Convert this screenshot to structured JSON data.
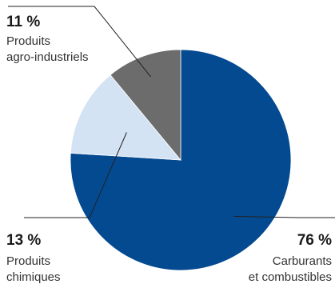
{
  "chart_data": {
    "type": "pie",
    "slices": [
      {
        "key": "carburants",
        "value": 76,
        "pct_label": "76 %",
        "label_lines": [
          "Carburants",
          "et combustibles"
        ],
        "color": "#034a91"
      },
      {
        "key": "chimiques",
        "value": 13,
        "pct_label": "13 %",
        "label_lines": [
          "Produits",
          "chimiques"
        ],
        "color": "#d4e3f4"
      },
      {
        "key": "agro",
        "value": 11,
        "pct_label": "11 %",
        "label_lines": [
          "Produits",
          "agro-industriels"
        ],
        "color": "#6c6c6c"
      }
    ],
    "start": "12 o'clock",
    "direction": "clockwise"
  }
}
